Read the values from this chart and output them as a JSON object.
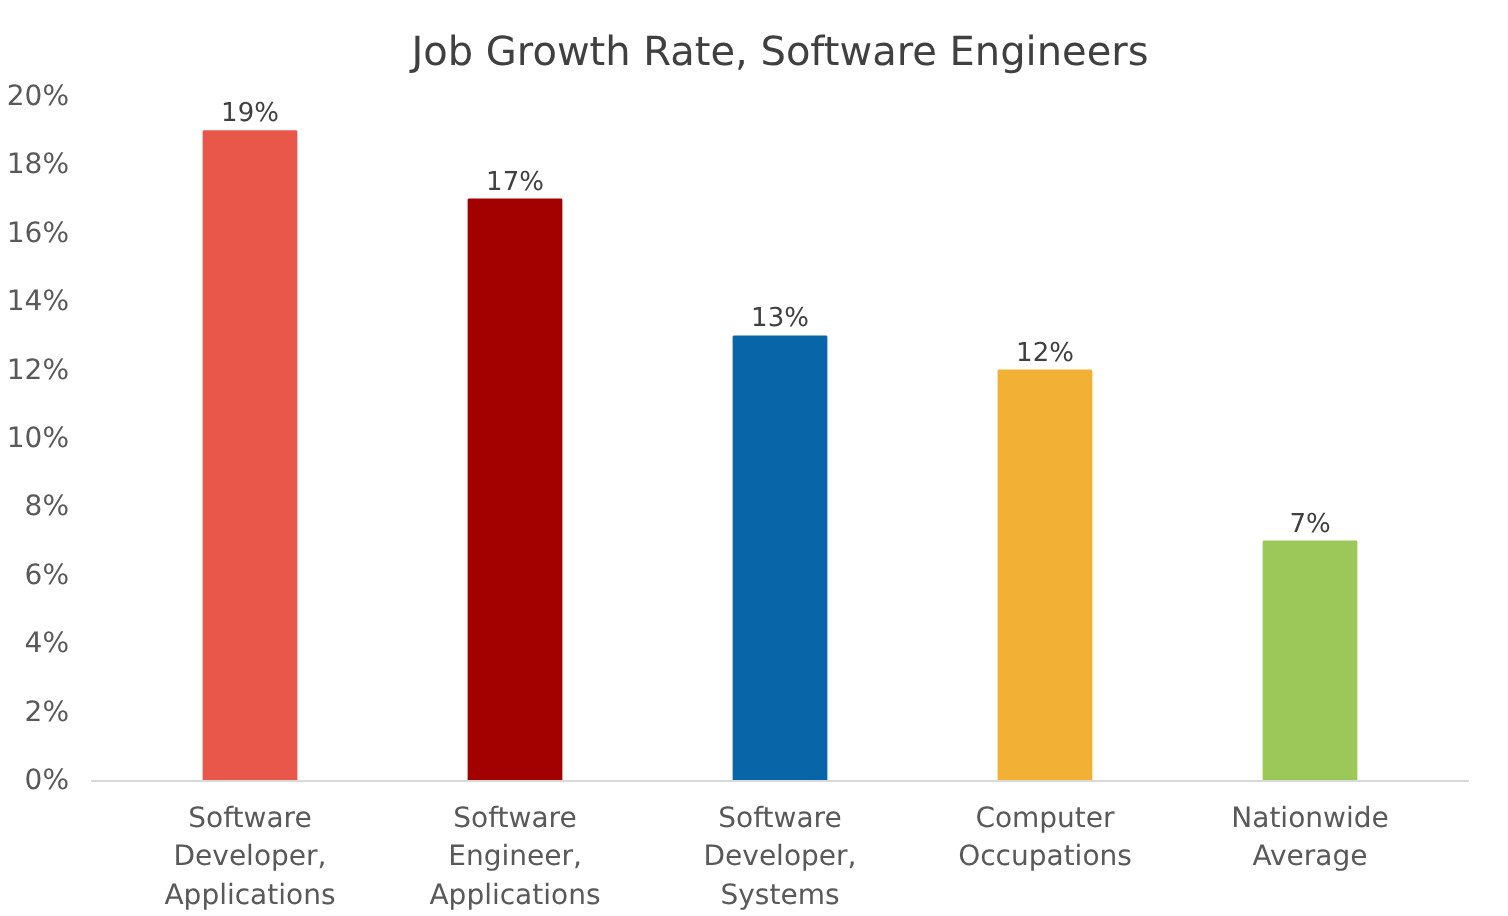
{
  "chart_data": {
    "type": "bar",
    "title": "Job Growth Rate, Software Engineers",
    "categories": [
      "Software Developer, Applications",
      "Software Engineer, Applications",
      "Software Developer, Systems",
      "Computer Occupations",
      "Nationwide Average"
    ],
    "values": [
      19,
      17,
      13,
      12,
      7
    ],
    "colors": [
      "#e9574b",
      "#a30000",
      "#0866a8",
      "#f2b134",
      "#9cc85a"
    ],
    "value_labels": [
      "19%",
      "17%",
      "13%",
      "12%",
      "7%"
    ],
    "ylim": [
      0,
      20
    ],
    "yticks": [
      {
        "value": 0,
        "label": "0%"
      },
      {
        "value": 2,
        "label": "2%"
      },
      {
        "value": 4,
        "label": "4%"
      },
      {
        "value": 6,
        "label": "6%"
      },
      {
        "value": 8,
        "label": "8%"
      },
      {
        "value": 10,
        "label": "10%"
      },
      {
        "value": 12,
        "label": "12%"
      },
      {
        "value": 14,
        "label": "14%"
      },
      {
        "value": 16,
        "label": "16%"
      },
      {
        "value": 18,
        "label": "18%"
      },
      {
        "value": 20,
        "label": "20%"
      }
    ],
    "grid": false
  }
}
